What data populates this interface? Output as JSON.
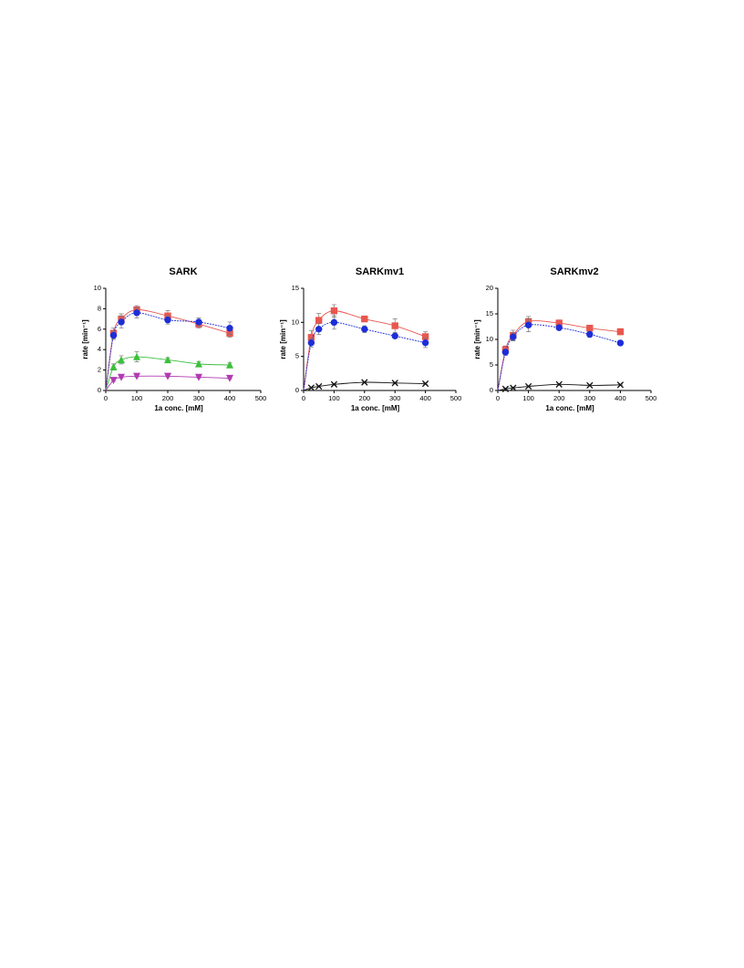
{
  "chart_data": [
    {
      "type": "scatter",
      "title": "SARK",
      "x_label": "1a conc. [mM]",
      "y_label": "rate [min⁻¹]",
      "x": [
        25,
        50,
        100,
        200,
        300,
        400
      ],
      "xlim": [
        0,
        500
      ],
      "xticks": [
        0,
        100,
        200,
        300,
        400,
        500
      ],
      "ylim": [
        0,
        10
      ],
      "yticks": [
        0,
        2,
        4,
        6,
        8,
        10
      ],
      "series": [
        {
          "color": "#e8574f",
          "marker": "square",
          "values": [
            5.6,
            7.0,
            7.9,
            7.3,
            6.5,
            5.6
          ],
          "errors": [
            0.5,
            0.5,
            0.4,
            0.5,
            0.4,
            0.4
          ]
        },
        {
          "color": "#1d2ed8",
          "marker": "circle",
          "values": [
            5.4,
            6.7,
            7.6,
            6.9,
            6.7,
            6.1
          ],
          "errors": [
            0.4,
            0.6,
            0.5,
            0.4,
            0.4,
            0.6
          ]
        },
        {
          "color": "#3dbf3d",
          "marker": "triangle-up",
          "values": [
            2.3,
            3.0,
            3.3,
            3.0,
            2.6,
            2.5
          ],
          "errors": [
            0.3,
            0.4,
            0.5,
            0.2,
            0.2,
            0.2
          ]
        },
        {
          "color": "#b13ab3",
          "marker": "triangle-down",
          "values": [
            1.0,
            1.3,
            1.4,
            1.4,
            1.3,
            1.2
          ],
          "errors": [
            0.1,
            0.1,
            0.1,
            0.1,
            0.1,
            0.1
          ]
        }
      ]
    },
    {
      "type": "scatter",
      "title": "SARKmv1",
      "x_label": "1a conc. [mM]",
      "y_label": "rate [min⁻¹]",
      "x": [
        25,
        50,
        100,
        200,
        300,
        400
      ],
      "xlim": [
        0,
        500
      ],
      "xticks": [
        0,
        100,
        200,
        300,
        400,
        500
      ],
      "ylim": [
        0,
        15
      ],
      "yticks": [
        0,
        5,
        10,
        15
      ],
      "series": [
        {
          "color": "#e8574f",
          "marker": "square",
          "values": [
            7.8,
            10.3,
            11.7,
            10.5,
            9.5,
            7.9
          ],
          "errors": [
            1.0,
            1.0,
            0.9,
            0.4,
            1.0,
            0.7
          ]
        },
        {
          "color": "#1d2ed8",
          "marker": "circle",
          "values": [
            7.0,
            9.0,
            10.0,
            9.0,
            8.0,
            7.0
          ],
          "errors": [
            0.6,
            0.8,
            1.0,
            0.5,
            0.3,
            0.7
          ]
        },
        {
          "color": "#111111",
          "marker": "x",
          "values": [
            0.4,
            0.6,
            0.9,
            1.2,
            1.1,
            1.0
          ],
          "errors": [
            0.1,
            0.1,
            0.1,
            0.1,
            0.1,
            0.1
          ]
        }
      ]
    },
    {
      "type": "scatter",
      "title": "SARKmv2",
      "x_label": "1a conc. [mM]",
      "y_label": "rate [min⁻¹]",
      "x": [
        25,
        50,
        100,
        200,
        300,
        400
      ],
      "xlim": [
        0,
        500
      ],
      "xticks": [
        0,
        100,
        200,
        300,
        400,
        500
      ],
      "ylim": [
        0,
        20
      ],
      "yticks": [
        0,
        5,
        10,
        15,
        20
      ],
      "series": [
        {
          "color": "#e8574f",
          "marker": "square",
          "values": [
            8.0,
            10.8,
            13.5,
            13.2,
            12.2,
            11.5
          ],
          "errors": [
            0.7,
            1.0,
            1.0,
            0.6,
            0.6,
            0.6
          ]
        },
        {
          "color": "#1d2ed8",
          "marker": "circle",
          "values": [
            7.5,
            10.5,
            12.8,
            12.3,
            11.0,
            9.3
          ],
          "errors": [
            0.6,
            0.8,
            1.3,
            0.5,
            0.6,
            0.5
          ]
        },
        {
          "color": "#111111",
          "marker": "x",
          "values": [
            0.3,
            0.5,
            0.8,
            1.2,
            1.0,
            1.1
          ],
          "errors": [
            0.1,
            0.1,
            0.1,
            0.1,
            0.1,
            0.1
          ]
        }
      ]
    }
  ]
}
